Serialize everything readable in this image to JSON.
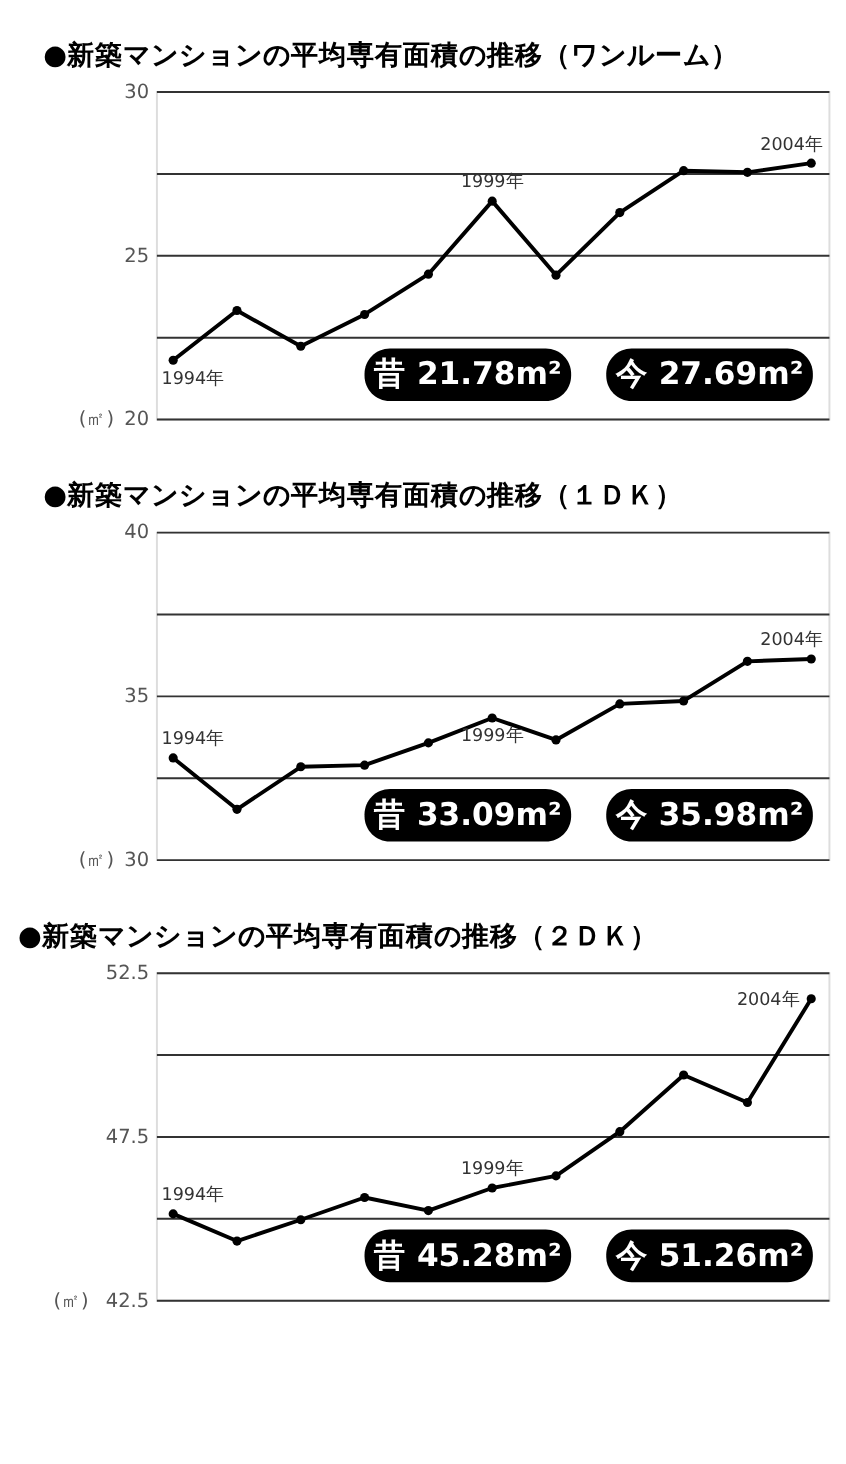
{
  "chart_data": [
    {
      "type": "line",
      "title": "●新築マンションの平均専有面積の推移（ワンルーム）",
      "ylabel": "(㎡)",
      "categories": [
        null,
        null,
        null,
        null,
        null,
        null,
        null,
        null,
        null,
        null,
        null
      ],
      "ylim": [
        20,
        30
      ],
      "yticks": [
        20,
        {
          "value": 22.5,
          "label": null
        },
        25,
        {
          "value": 27.5,
          "label": null
        },
        30
      ],
      "grid": "y",
      "tick_labels": "y",
      "marker": "circle",
      "line_style": "solid",
      "series": [
        {
          "color": "#000000",
          "values": [
            21.78,
            23.3,
            22.21,
            23.18,
            24.41,
            26.64,
            24.38,
            26.29,
            27.57,
            27.52,
            27.8
          ]
        }
      ],
      "annotations": [
        "1994年",
        "1999年",
        "2004年",
        "昔 21.78m²",
        "今 27.69m²"
      ]
    },
    {
      "type": "line",
      "title": "●新築マンションの平均専有面積の推移（１ＤＫ）",
      "ylabel": "(㎡)",
      "categories": [
        null,
        null,
        null,
        null,
        null,
        null,
        null,
        null,
        null,
        null,
        null
      ],
      "ylim": [
        30,
        40
      ],
      "yticks": [
        30,
        {
          "value": 32.5,
          "label": null
        },
        35,
        {
          "value": 37.5,
          "label": null
        },
        40
      ],
      "grid": "y",
      "tick_labels": "y",
      "marker": "circle",
      "line_style": "solid",
      "series": [
        {
          "color": "#000000",
          "values": [
            33.09,
            31.52,
            32.82,
            32.87,
            33.55,
            34.31,
            33.64,
            34.74,
            34.83,
            36.04,
            36.11
          ]
        }
      ],
      "annotations": [
        "1994年",
        "1999年",
        "2004年",
        "昔 33.09m²",
        "今 35.98m²"
      ]
    },
    {
      "type": "line",
      "title": "●新築マンションの平均専有面積の推移（２ＤＫ）",
      "ylabel": "(㎡)",
      "categories": [
        null,
        null,
        null,
        null,
        null,
        null,
        null,
        null,
        null,
        null,
        null
      ],
      "ylim": [
        42.5,
        52.5
      ],
      "yticks": [
        42.5,
        {
          "value": 45,
          "label": null
        },
        47.5,
        {
          "value": 50,
          "label": null
        },
        52.5
      ],
      "grid": "y",
      "tick_labels": "y",
      "marker": "circle",
      "line_style": "solid",
      "series": [
        {
          "color": "#000000",
          "values": [
            45.12,
            44.29,
            44.94,
            45.62,
            45.22,
            45.91,
            46.28,
            47.63,
            49.36,
            48.52,
            51.69
          ]
        }
      ],
      "annotations": [
        "1994年",
        "1999年",
        "2004年",
        "昔 45.28m²",
        "今 51.26m²"
      ]
    }
  ]
}
